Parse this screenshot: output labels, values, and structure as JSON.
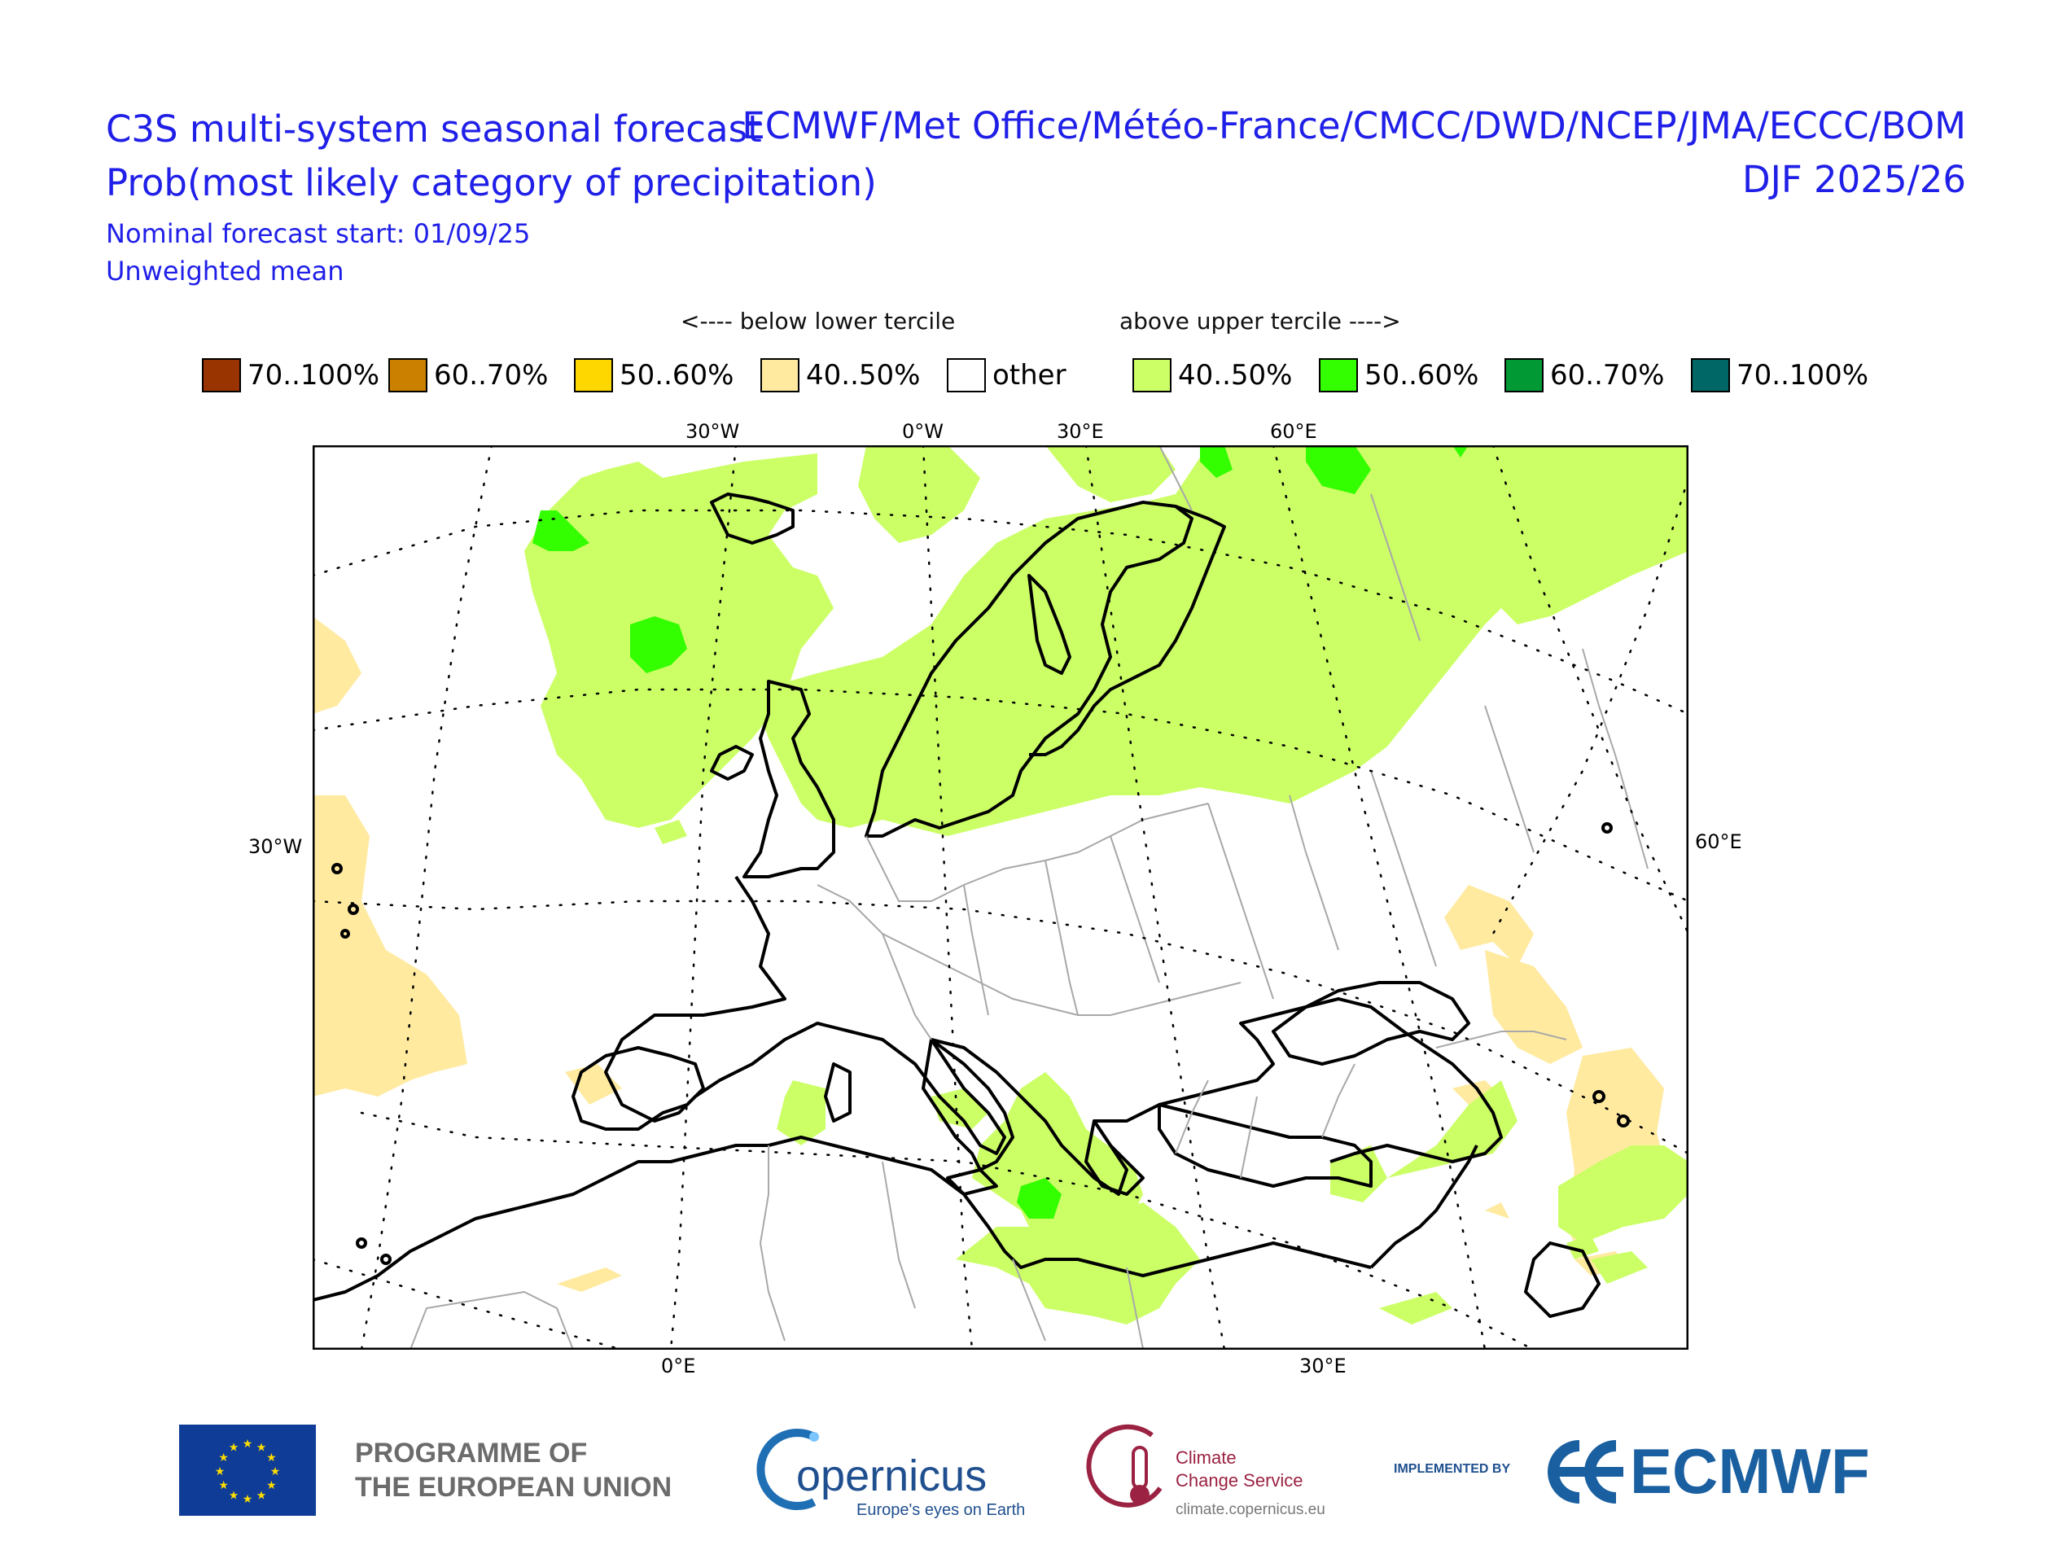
{
  "header": {
    "title_line1": "C3S multi-system seasonal forecast",
    "title_line2": "Prob(most likely category of precipitation)",
    "forecast_start": "Nominal forecast start: 01/09/25",
    "mean_type": "Unweighted mean",
    "centres": "ECMWF/Met Office/Météo-France/CMCC/DWD/NCEP/JMA/ECCC/BOM",
    "season": "DJF 2025/26"
  },
  "legend": {
    "below_caption": "<---- below lower tercile",
    "above_caption": "above upper tercile ---->",
    "items": [
      {
        "label": "70..100%",
        "color": "#993300"
      },
      {
        "label": "60..70%",
        "color": "#cc8000"
      },
      {
        "label": "50..60%",
        "color": "#ffd700"
      },
      {
        "label": "40..50%",
        "color": "#ffeaa0"
      },
      {
        "label": "other",
        "color": "#ffffff"
      },
      {
        "label": "40..50%",
        "color": "#ccff66"
      },
      {
        "label": "50..60%",
        "color": "#33ff00"
      },
      {
        "label": "60..70%",
        "color": "#009933"
      },
      {
        "label": "70..100%",
        "color": "#006666"
      }
    ]
  },
  "map": {
    "top_labels": [
      "30°W",
      "0°W",
      "30°E",
      "60°E"
    ],
    "left_label": "30°W",
    "right_label": "60°E",
    "bottom_labels": [
      "0°E",
      "30°E"
    ]
  },
  "footer": {
    "eu_programme": "PROGRAMME OF",
    "eu_programme2": "THE EUROPEAN UNION",
    "copernicus": "opernicus",
    "copernicus_tag": "Europe's eyes on Earth",
    "climate_line1": "Climate",
    "climate_line2": "Change Service",
    "climate_url": "climate.copernicus.eu",
    "implemented_by": "IMPLEMENTED BY",
    "ecmwf": "ECMWF"
  }
}
